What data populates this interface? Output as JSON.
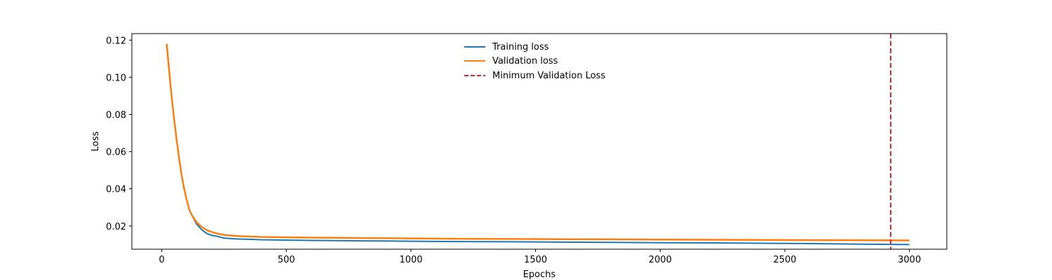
{
  "chart_data": {
    "type": "line",
    "title": "",
    "xlabel": "Epochs",
    "ylabel": "Loss",
    "xlim": [
      -120,
      3150
    ],
    "ylim": [
      0.0075,
      0.1235
    ],
    "xticks": [
      0,
      500,
      1000,
      1500,
      2000,
      2500,
      3000
    ],
    "yticks": [
      0.02,
      0.04,
      0.06,
      0.08,
      0.1,
      0.12
    ],
    "xtick_labels": [
      "0",
      "500",
      "1000",
      "1500",
      "2000",
      "2500",
      "3000"
    ],
    "ytick_labels": [
      "0.02",
      "0.04",
      "0.06",
      "0.08",
      "0.10",
      "0.12"
    ],
    "grid": false,
    "legend_position": "upper-center",
    "series": [
      {
        "name": "Training loss",
        "color": "#1f77b4",
        "style": "solid",
        "x": [
          20,
          30,
          40,
          50,
          60,
          70,
          80,
          90,
          100,
          110,
          120,
          140,
          160,
          180,
          200,
          220,
          250,
          300,
          350,
          400,
          450,
          500,
          600,
          700,
          800,
          900,
          1000,
          1200,
          1400,
          1600,
          1800,
          2000,
          2200,
          2400,
          2600,
          2800,
          3000
        ],
        "y": [
          0.118,
          0.103,
          0.089,
          0.077,
          0.066,
          0.056,
          0.047,
          0.04,
          0.034,
          0.029,
          0.026,
          0.021,
          0.018,
          0.016,
          0.015,
          0.0145,
          0.0135,
          0.013,
          0.0128,
          0.0126,
          0.0125,
          0.0124,
          0.0122,
          0.0121,
          0.012,
          0.0119,
          0.0118,
          0.0116,
          0.0115,
          0.0113,
          0.0112,
          0.011,
          0.0109,
          0.0107,
          0.0105,
          0.0102,
          0.01
        ]
      },
      {
        "name": "Validation loss",
        "color": "#ff7f0e",
        "style": "solid",
        "x": [
          20,
          30,
          40,
          50,
          60,
          70,
          80,
          90,
          100,
          110,
          120,
          140,
          160,
          180,
          200,
          220,
          250,
          300,
          350,
          400,
          450,
          500,
          600,
          700,
          800,
          900,
          1000,
          1200,
          1400,
          1600,
          1800,
          2000,
          2200,
          2400,
          2600,
          2800,
          3000
        ],
        "y": [
          0.118,
          0.103,
          0.089,
          0.077,
          0.066,
          0.056,
          0.047,
          0.04,
          0.034,
          0.029,
          0.026,
          0.022,
          0.0195,
          0.0178,
          0.0168,
          0.016,
          0.0152,
          0.0146,
          0.0143,
          0.0141,
          0.014,
          0.0139,
          0.0137,
          0.0136,
          0.0135,
          0.0134,
          0.0133,
          0.0131,
          0.013,
          0.0129,
          0.0128,
          0.0127,
          0.0126,
          0.0125,
          0.0124,
          0.0123,
          0.0122
        ]
      }
    ],
    "vlines": [
      {
        "name": "Minimum Validation Loss",
        "x": 2925,
        "color": "#d62728",
        "style": "dashed"
      }
    ]
  }
}
